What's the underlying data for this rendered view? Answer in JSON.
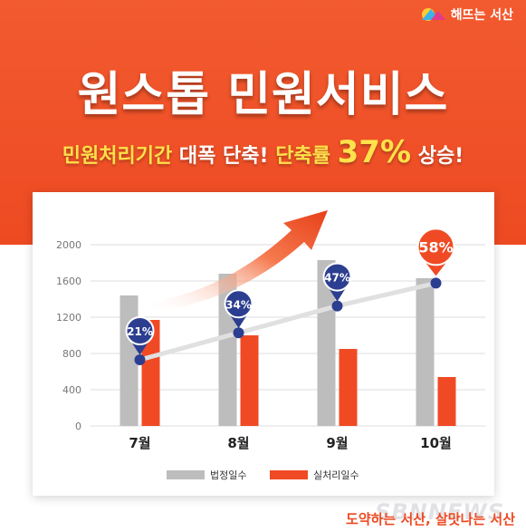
{
  "header": {
    "logo_text": "해뜨는 서산",
    "title": "원스톱 민원서비스",
    "subtitle_part1": "민원처리기간",
    "subtitle_part2": "대폭 단축!",
    "subtitle_part3": "단축률",
    "subtitle_big": "37%",
    "subtitle_part4": "상승!"
  },
  "footer": {
    "slogan": "도약하는 서산, 살맛나는 서산",
    "watermark": "SBNNEWS"
  },
  "colors": {
    "brand": "#ee4a22",
    "gray_bar": "#bdbdbd",
    "red_bar": "#f04a25",
    "marker": "#2c3e8f",
    "highlight_marker": "#f04a25"
  },
  "chart_data": {
    "type": "bar",
    "categories": [
      "7월",
      "8월",
      "9월",
      "10월"
    ],
    "ylim": [
      0,
      2000
    ],
    "yticks": [
      "0",
      "400",
      "800",
      "1200",
      "1600",
      "2000"
    ],
    "grid": true,
    "legend_position": "bottom",
    "series": [
      {
        "name": "법정일수",
        "values": [
          1440,
          1680,
          1830,
          1630
        ]
      },
      {
        "name": "실처리일수",
        "values": [
          1170,
          1000,
          850,
          540
        ]
      }
    ],
    "rate": {
      "values": [
        21,
        34,
        47,
        58
      ],
      "labels": [
        "21%",
        "34%",
        "47%",
        "58%"
      ]
    }
  }
}
